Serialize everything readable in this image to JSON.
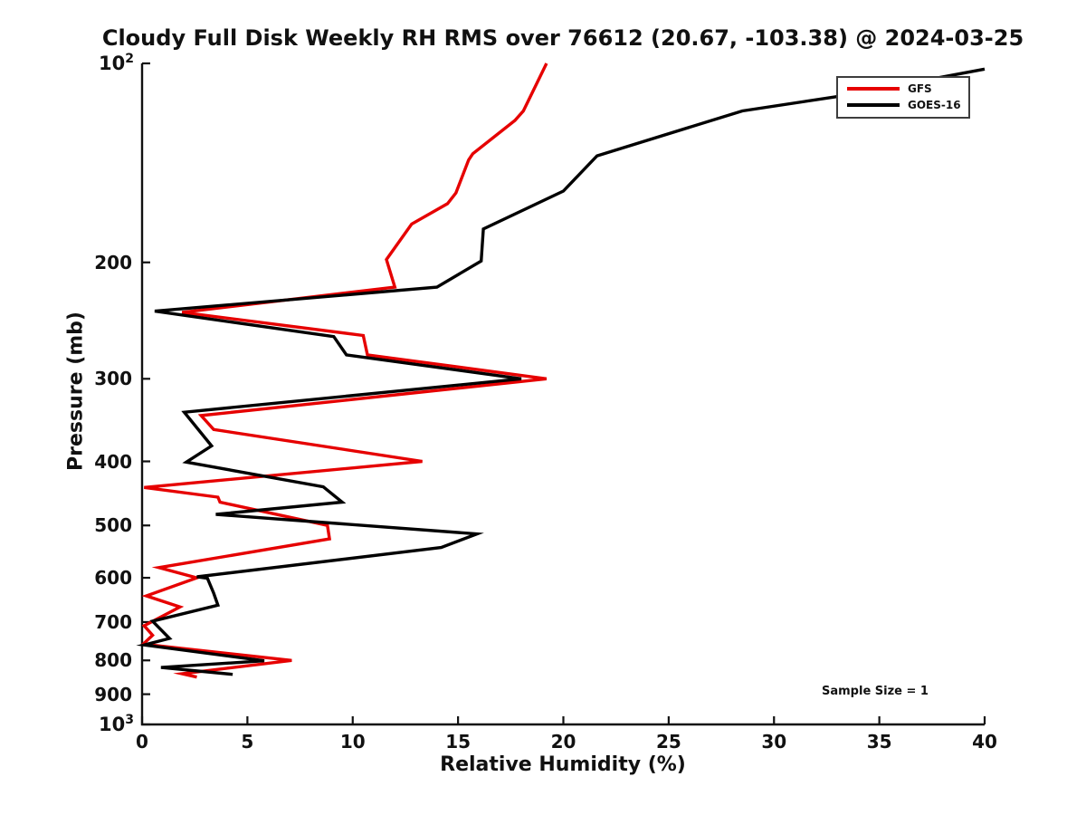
{
  "title": "Cloudy Full Disk Weekly RH RMS over 76612 (20.67, -103.38) @ 2024-03-25",
  "annotation": "Sample Size = 1",
  "legend": {
    "items": [
      {
        "label": "GFS",
        "color": "#e60000"
      },
      {
        "label": "GOES-16",
        "color": "#000000"
      }
    ]
  },
  "chart_data": {
    "type": "line",
    "title": "Cloudy Full Disk Weekly RH RMS over 76612 (20.67, -103.38) @ 2024-03-25",
    "xlabel": "Relative Humidity (%)",
    "ylabel": "Pressure (mb)",
    "x_range": [
      0,
      40
    ],
    "x_ticks": [
      0,
      5,
      10,
      15,
      20,
      25,
      30,
      35,
      40
    ],
    "y_scale": "log",
    "y_direction": "increasing-downward",
    "y_range": [
      100,
      1000
    ],
    "y_tick_marks": [
      100,
      200,
      300,
      400,
      500,
      600,
      700,
      800,
      900,
      1000
    ],
    "y_ticks": [
      200,
      300,
      400,
      500,
      600,
      700,
      800,
      900
    ],
    "y_tick_top": {
      "base": "10",
      "exp": "2"
    },
    "y_tick_bottom": {
      "base": "10",
      "exp": "3"
    },
    "grid": false,
    "legend_position": "upper-right-inside",
    "annotation": "Sample Size = 1",
    "series": [
      {
        "name": "GFS",
        "color": "#e60000",
        "points_format": "[relative_humidity_pct, pressure_mb]",
        "points": [
          [
            19.2,
            100
          ],
          [
            18.1,
            118
          ],
          [
            17.7,
            122
          ],
          [
            15.7,
            137
          ],
          [
            15.5,
            140
          ],
          [
            14.9,
            157
          ],
          [
            14.5,
            163
          ],
          [
            12.8,
            175
          ],
          [
            11.6,
            198
          ],
          [
            12.0,
            218
          ],
          [
            1.9,
            238
          ],
          [
            10.5,
            258
          ],
          [
            10.7,
            276
          ],
          [
            19.2,
            300
          ],
          [
            2.8,
            341
          ],
          [
            3.4,
            358
          ],
          [
            13.3,
            400
          ],
          [
            0.1,
            438
          ],
          [
            3.6,
            453
          ],
          [
            3.7,
            461
          ],
          [
            8.8,
            500
          ],
          [
            8.9,
            524
          ],
          [
            0.8,
            579
          ],
          [
            2.6,
            600
          ],
          [
            0.2,
            639
          ],
          [
            1.8,
            664
          ],
          [
            0.1,
            709
          ],
          [
            0.5,
            733
          ],
          [
            0.05,
            756
          ],
          [
            7.1,
            800
          ],
          [
            1.9,
            838
          ],
          [
            2.6,
            848
          ]
        ]
      },
      {
        "name": "GOES-16",
        "color": "#000000",
        "points_format": "[relative_humidity_pct, pressure_mb]",
        "points": [
          [
            40.0,
            102
          ],
          [
            33.2,
            112
          ],
          [
            28.5,
            118
          ],
          [
            21.6,
            138
          ],
          [
            20.0,
            156
          ],
          [
            16.2,
            178
          ],
          [
            16.1,
            199
          ],
          [
            14.0,
            218
          ],
          [
            0.6,
            237
          ],
          [
            9.1,
            259
          ],
          [
            9.7,
            276
          ],
          [
            18.0,
            300
          ],
          [
            2.0,
            337
          ],
          [
            3.3,
            379
          ],
          [
            2.1,
            401
          ],
          [
            8.6,
            437
          ],
          [
            9.5,
            461
          ],
          [
            3.5,
            481
          ],
          [
            15.9,
            515
          ],
          [
            14.2,
            540
          ],
          [
            2.6,
            598
          ],
          [
            3.1,
            601
          ],
          [
            3.4,
            633
          ],
          [
            3.6,
            660
          ],
          [
            0.5,
            698
          ],
          [
            1.3,
            741
          ],
          [
            0.1,
            758
          ],
          [
            5.8,
            801
          ],
          [
            0.9,
            820
          ],
          [
            4.3,
            840
          ]
        ]
      }
    ]
  }
}
